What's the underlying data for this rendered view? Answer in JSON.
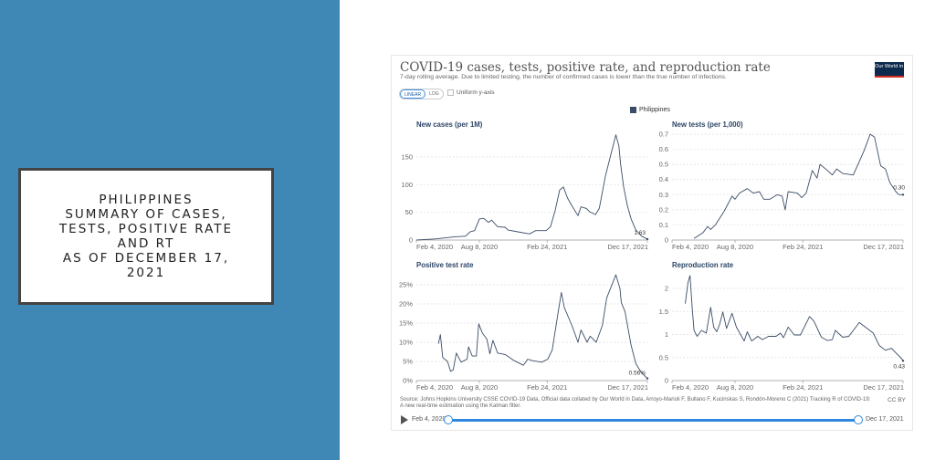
{
  "slide": {
    "title_lines": [
      "PHILIPPINES",
      "SUMMARY OF CASES,",
      "TESTS, POSITIVE RATE",
      "AND RT",
      "AS OF DECEMBER 17,",
      "2021"
    ],
    "panel_color": "#3f88b5"
  },
  "header": {
    "title": "COVID-19 cases, tests, positive rate, and reproduction rate",
    "subtitle": "7-day rolling average. Due to limited testing, the number of confirmed cases is lower than the true number of infections.",
    "logo_text": "Our World in Data",
    "scale_linear": "LINEAR",
    "scale_log": "LOG",
    "uniform_y_axis": "Uniform y-axis",
    "legend_label": "Philippines"
  },
  "footer": {
    "source": "Source: Johns Hopkins University CSSE COVID-19 Data, Official data collated by Our World in Data, Arroyo-Marioli F, Bullano F, Kucinskas S, Rondón-Moreno C (2021) Tracking R of COVID-19: A new real-time estimation using the Kalman filter.",
    "license": "CC BY",
    "timeline_start": "Feb 4, 2020",
    "timeline_end": "Dec 17, 2021"
  },
  "chart_data": [
    {
      "type": "line",
      "title": "New cases (per 1M)",
      "series_name": "Philippines",
      "color": "#3b4d66",
      "x_unit": "days since Feb 4, 2020",
      "x_ticks": [
        0,
        186,
        386,
        682
      ],
      "x_tick_labels": [
        "Feb 4, 2020",
        "Aug 8, 2020",
        "Feb 24, 2021",
        "Dec 17, 2021"
      ],
      "y_ticks": [
        0,
        50,
        100,
        150
      ],
      "y_tick_labels": [
        "0",
        "50",
        "100",
        "150"
      ],
      "ylim": [
        0,
        190
      ],
      "end_label": "1.63",
      "x": [
        0,
        55,
        114,
        145,
        159,
        172,
        186,
        199,
        213,
        222,
        240,
        262,
        271,
        307,
        334,
        352,
        383,
        396,
        410,
        423,
        434,
        446,
        459,
        477,
        486,
        502,
        512,
        529,
        540,
        558,
        574,
        589,
        598,
        603,
        612,
        623,
        634,
        648,
        665,
        682
      ],
      "y": [
        0,
        2,
        6,
        7,
        15,
        17,
        38,
        39,
        32,
        36,
        24,
        23,
        18,
        14,
        11,
        17,
        17,
        24,
        54,
        90,
        96,
        76,
        62,
        44,
        60,
        57,
        51,
        46,
        57,
        115,
        154,
        190,
        170,
        137,
        96,
        62,
        38,
        18,
        7,
        1.63
      ]
    },
    {
      "type": "line",
      "title": "New tests (per 1,000)",
      "series_name": "Philippines",
      "color": "#3b4d66",
      "x_unit": "days since Feb 4, 2020",
      "x_ticks": [
        0,
        186,
        386,
        682
      ],
      "x_tick_labels": [
        "Feb 4, 2020",
        "Aug 8, 2020",
        "Feb 24, 2021",
        "Dec 17, 2021"
      ],
      "y_ticks": [
        0,
        0.1,
        0.2,
        0.3,
        0.4,
        0.5,
        0.6,
        0.7
      ],
      "y_tick_labels": [
        "0",
        "0.1",
        "0.2",
        "0.3",
        "0.4",
        "0.5",
        "0.6",
        "0.7"
      ],
      "ylim": [
        0,
        0.7
      ],
      "end_label": "0.30",
      "x": [
        65,
        92,
        105,
        114,
        128,
        154,
        177,
        186,
        199,
        222,
        240,
        258,
        271,
        289,
        311,
        325,
        334,
        343,
        370,
        383,
        396,
        414,
        428,
        437,
        459,
        473,
        486,
        504,
        535,
        549,
        567,
        585,
        598,
        616,
        630,
        643,
        661,
        670,
        682
      ],
      "y": [
        0.01,
        0.05,
        0.09,
        0.07,
        0.1,
        0.19,
        0.29,
        0.27,
        0.31,
        0.34,
        0.31,
        0.32,
        0.27,
        0.27,
        0.3,
        0.29,
        0.2,
        0.32,
        0.31,
        0.28,
        0.31,
        0.46,
        0.41,
        0.5,
        0.46,
        0.43,
        0.47,
        0.44,
        0.43,
        0.5,
        0.59,
        0.7,
        0.68,
        0.49,
        0.47,
        0.38,
        0.32,
        0.3,
        0.3
      ]
    },
    {
      "type": "line",
      "title": "Positive test rate",
      "series_name": "Philippines",
      "color": "#3b4d66",
      "x_unit": "days since Feb 4, 2020",
      "x_ticks": [
        0,
        186,
        386,
        682
      ],
      "x_tick_labels": [
        "Feb 4, 2020",
        "Aug 8, 2020",
        "Feb 24, 2021",
        "Dec 17, 2021"
      ],
      "y_ticks": [
        0,
        5,
        10,
        15,
        20,
        25
      ],
      "y_tick_labels": [
        "0%",
        "5%",
        "10%",
        "15%",
        "20%",
        "25%"
      ],
      "ylim": [
        0,
        28
      ],
      "end_label": "0.56%",
      "x": [
        65,
        71,
        78,
        92,
        101,
        109,
        118,
        132,
        150,
        154,
        165,
        177,
        184,
        195,
        208,
        217,
        226,
        240,
        262,
        289,
        316,
        329,
        343,
        370,
        388,
        401,
        419,
        428,
        437,
        459,
        477,
        486,
        504,
        513,
        531,
        549,
        562,
        589,
        601,
        605,
        616,
        634,
        648,
        665,
        682
      ],
      "y": [
        9.6,
        12,
        6,
        5,
        2.4,
        2.8,
        7.2,
        4.8,
        5.6,
        8.8,
        6.4,
        6.4,
        14.8,
        12.4,
        10.8,
        7,
        10.5,
        7.2,
        6.8,
        5.2,
        4,
        5.6,
        5.2,
        4.8,
        5.6,
        8,
        18,
        23,
        19,
        14.4,
        10,
        13.2,
        10,
        11.6,
        10,
        14.4,
        21.6,
        27.6,
        24,
        20.4,
        18,
        9.2,
        4.4,
        2,
        0.56
      ]
    },
    {
      "type": "line",
      "title": "Reproduction rate",
      "series_name": "Philippines",
      "color": "#3b4d66",
      "x_unit": "days since Feb 4, 2020",
      "x_ticks": [
        0,
        186,
        386,
        682
      ],
      "x_tick_labels": [
        "Feb 4, 2020",
        "Aug 8, 2020",
        "Feb 24, 2021",
        "Dec 17, 2021"
      ],
      "y_ticks": [
        0,
        0.5,
        1,
        1.5,
        2
      ],
      "y_tick_labels": [
        "0",
        "0.5",
        "1",
        "1.5",
        "2"
      ],
      "ylim": [
        0,
        2.3
      ],
      "end_label": "0.43",
      "x": [
        39,
        47,
        53,
        60,
        65,
        74,
        87,
        101,
        114,
        123,
        132,
        141,
        150,
        161,
        177,
        190,
        213,
        222,
        235,
        253,
        267,
        285,
        307,
        320,
        329,
        343,
        361,
        379,
        406,
        419,
        441,
        459,
        473,
        482,
        504,
        522,
        553,
        576,
        594,
        612,
        630,
        648,
        661,
        675,
        682
      ],
      "y": [
        1.67,
        2.12,
        2.28,
        1.52,
        1.09,
        0.96,
        1.09,
        1.03,
        1.59,
        1.16,
        1.06,
        1.23,
        1.49,
        1.13,
        1.46,
        1.16,
        0.86,
        1.06,
        0.86,
        0.96,
        0.89,
        0.96,
        0.96,
        1.03,
        0.93,
        1.16,
        0.99,
        0.99,
        1.39,
        1.29,
        0.94,
        0.87,
        0.89,
        1.09,
        0.94,
        0.96,
        1.26,
        1.13,
        1.03,
        0.76,
        0.66,
        0.7,
        0.6,
        0.5,
        0.43
      ]
    }
  ]
}
